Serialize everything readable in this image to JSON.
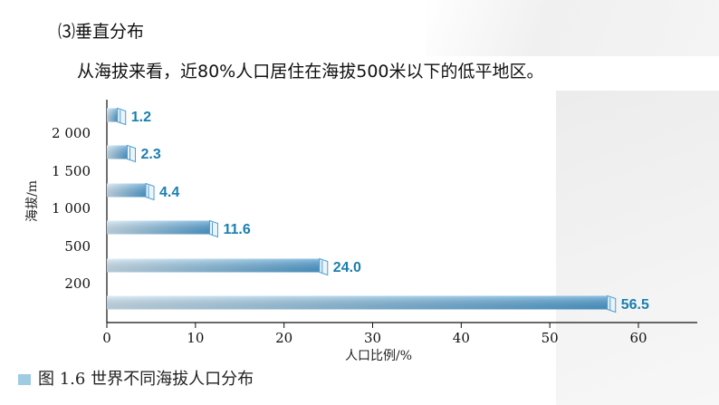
{
  "page": {
    "section_title": "⑶垂直分布",
    "statement": "从海拔来看，近80%人口居住在海拔500米以下的低平地区。"
  },
  "chart_data": {
    "type": "bar",
    "orientation": "horizontal",
    "title": "",
    "xlabel": "人口比例/%",
    "ylabel": "海拔/m",
    "categories": [
      "",
      "200",
      "500",
      "1 000",
      "1 500",
      "2 000"
    ],
    "values": [
      56.5,
      24.0,
      11.6,
      4.4,
      2.3,
      1.2
    ],
    "value_labels": [
      "56.5",
      "24.0",
      "11.6",
      "4.4",
      "2.3",
      "1.2"
    ],
    "xlim": [
      0,
      60
    ],
    "xticks": [
      "0",
      "10",
      "20",
      "30",
      "40",
      "50",
      "60"
    ],
    "grid": false,
    "bar_color": "#6aaedb",
    "label_color": "#1a7fb0",
    "caption": "图 1.6   世界不同海拔人口分布"
  }
}
